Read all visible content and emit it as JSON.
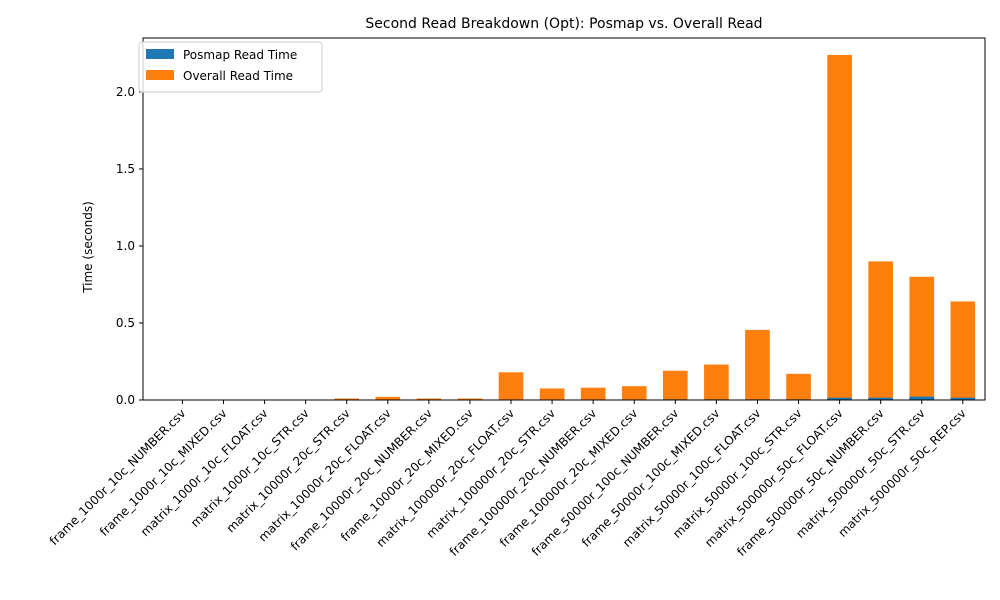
{
  "chart_data": {
    "type": "bar",
    "stacked": true,
    "title": "Second Read Breakdown (Opt): Posmap vs. Overall Read",
    "xlabel": "",
    "ylabel": "Time (seconds)",
    "ylim": [
      0,
      2.35
    ],
    "yticks": [
      "0.0",
      "0.5",
      "1.0",
      "1.5",
      "2.0"
    ],
    "ytick_values": [
      0,
      0.5,
      1.0,
      1.5,
      2.0
    ],
    "grid": false,
    "legend_position": "top-left",
    "categories": [
      "frame_1000r_10c_NUMBER.csv",
      "frame_1000r_10c_MIXED.csv",
      "matrix_1000r_10c_FLOAT.csv",
      "matrix_1000r_10c_STR.csv",
      "matrix_10000r_20c_STR.csv",
      "matrix_10000r_20c_FLOAT.csv",
      "frame_10000r_20c_NUMBER.csv",
      "frame_10000r_20c_MIXED.csv",
      "matrix_100000r_20c_FLOAT.csv",
      "matrix_100000r_20c_STR.csv",
      "frame_100000r_20c_NUMBER.csv",
      "frame_100000r_20c_MIXED.csv",
      "frame_50000r_100c_NUMBER.csv",
      "frame_50000r_100c_MIXED.csv",
      "matrix_50000r_100c_FLOAT.csv",
      "matrix_50000r_100c_STR.csv",
      "matrix_500000r_50c_FLOAT.csv",
      "frame_500000r_50c_NUMBER.csv",
      "matrix_500000r_50c_STR.csv",
      "matrix_500000r_50c_REP.csv"
    ],
    "series": [
      {
        "name": "Posmap Read Time",
        "color": "#1f77b4",
        "values": [
          0.0003,
          0.0003,
          0.0003,
          0.0003,
          0.001,
          0.001,
          0.001,
          0.001,
          0.003,
          0.003,
          0.003,
          0.003,
          0.004,
          0.004,
          0.004,
          0.004,
          0.015,
          0.015,
          0.022,
          0.015
        ]
      },
      {
        "name": "Overall Read Time",
        "color": "#ff7f0e",
        "values": [
          0.002,
          0.002,
          0.002,
          0.002,
          0.01,
          0.02,
          0.01,
          0.01,
          0.18,
          0.075,
          0.08,
          0.09,
          0.19,
          0.23,
          0.455,
          0.17,
          2.24,
          0.9,
          0.8,
          0.64
        ]
      }
    ]
  }
}
